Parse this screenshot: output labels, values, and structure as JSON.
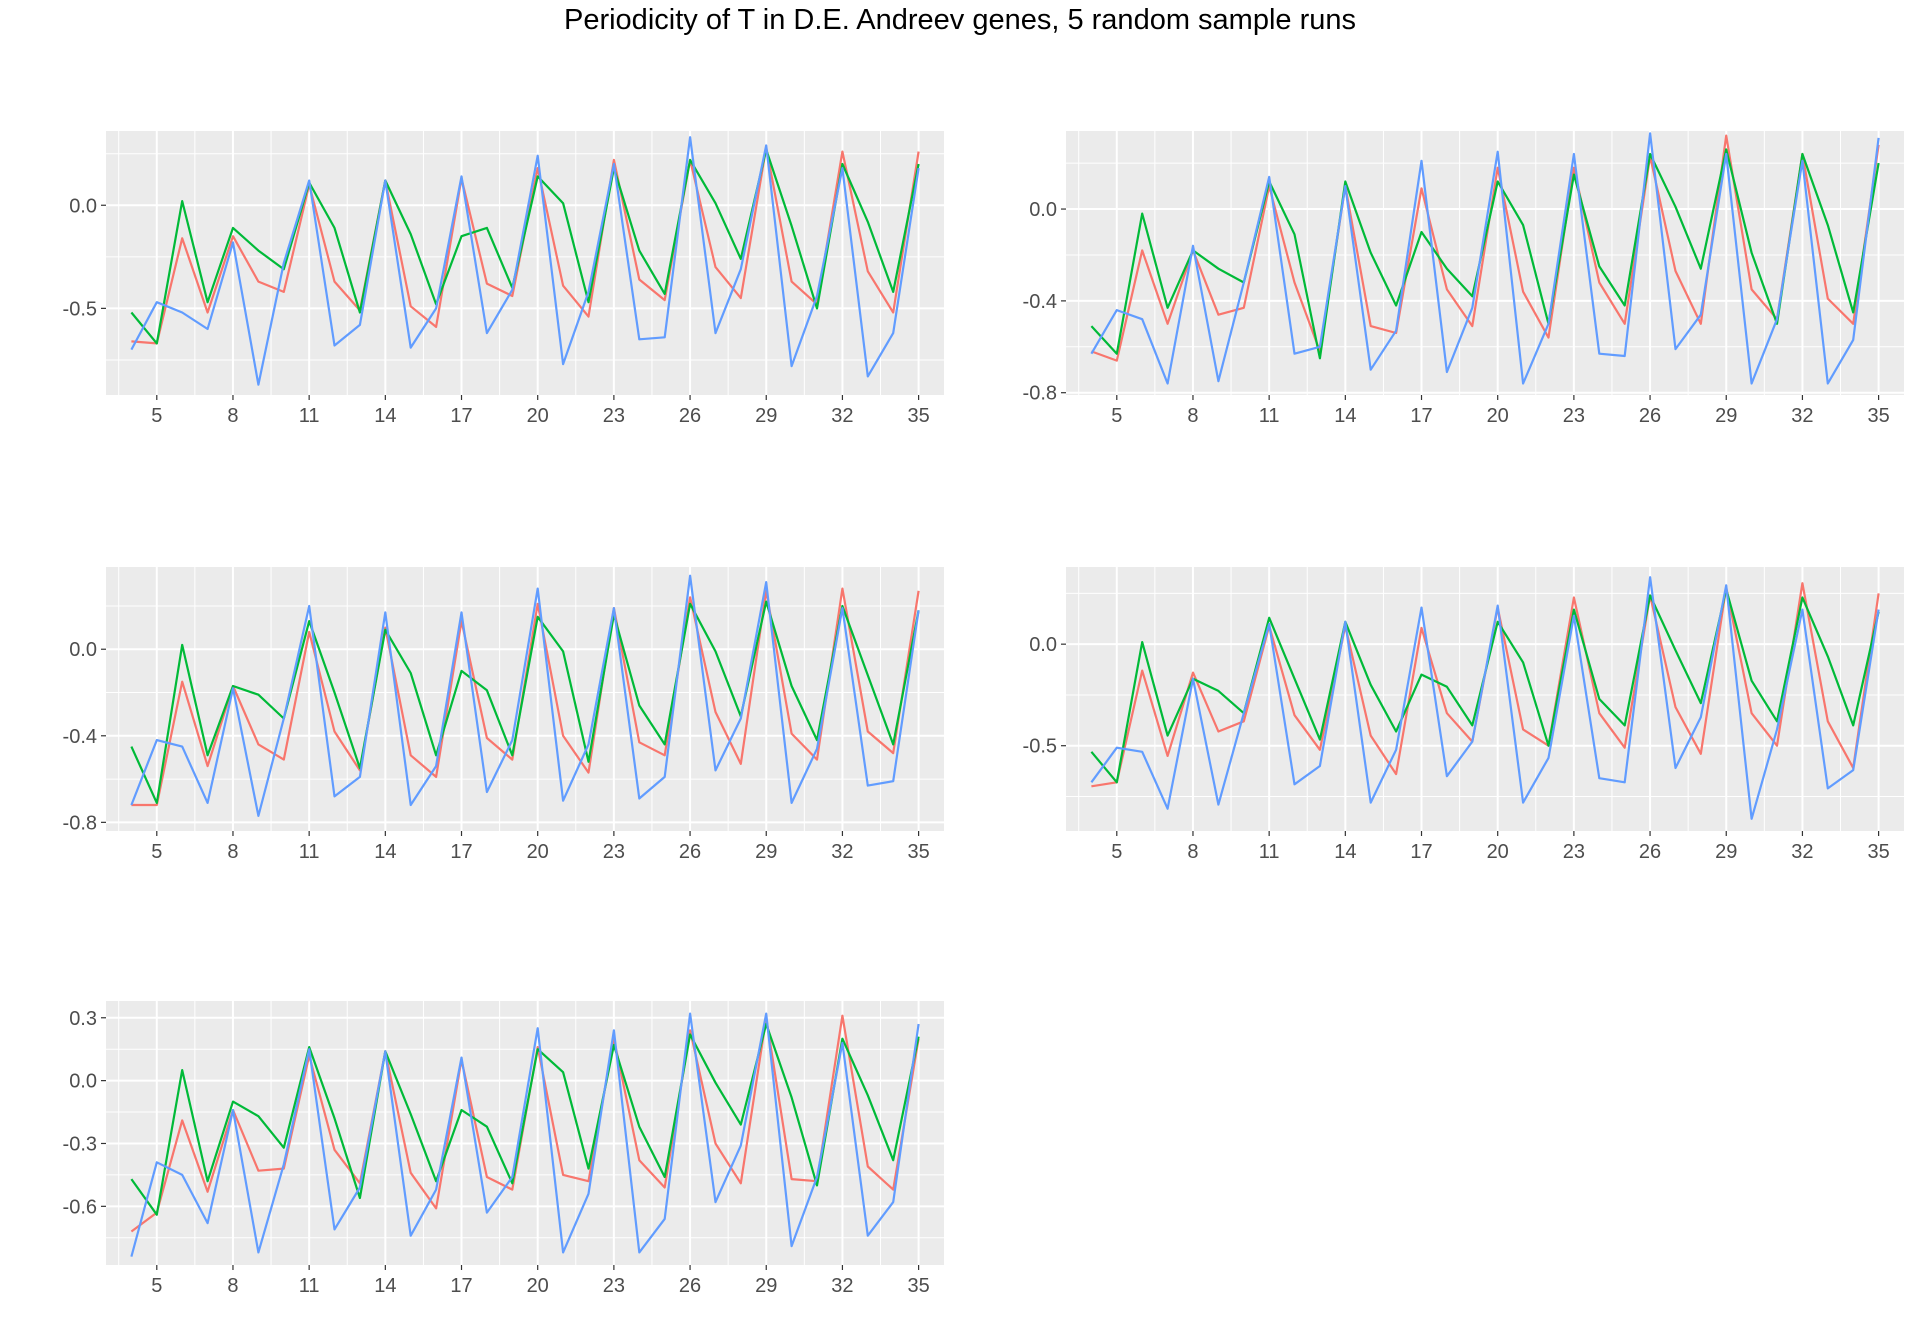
{
  "title": "Periodicity of T in D.E. Andreev genes, 5 random sample runs",
  "colors": {
    "series1": "#F8766D",
    "series2": "#00BA38",
    "series3": "#619CFF",
    "panel_bg": "#EBEBEB",
    "grid": "#FFFFFF",
    "tick_text": "#4D4D4D"
  },
  "chart_data": [
    {
      "type": "line",
      "xlim": [
        3,
        36
      ],
      "ylim": [
        -0.92,
        0.36
      ],
      "x_ticks": [
        5,
        8,
        11,
        14,
        17,
        20,
        23,
        26,
        29,
        32,
        35
      ],
      "x_tick_labels": [
        "5",
        "8",
        "11",
        "14",
        "17",
        "20",
        "23",
        "26",
        "29",
        "32",
        "35"
      ],
      "y_ticks": [
        -0.5,
        0.0
      ],
      "y_tick_labels": [
        "-0.5",
        "0.0"
      ],
      "x": [
        4,
        5,
        6,
        7,
        8,
        9,
        10,
        11,
        12,
        13,
        14,
        15,
        16,
        17,
        18,
        19,
        20,
        21,
        22,
        23,
        24,
        25,
        26,
        27,
        28,
        29,
        30,
        31,
        32,
        33,
        34,
        35
      ],
      "series": [
        {
          "color": "#F8766D",
          "values": [
            -0.66,
            -0.67,
            -0.16,
            -0.52,
            -0.15,
            -0.37,
            -0.42,
            0.1,
            -0.37,
            -0.51,
            0.12,
            -0.49,
            -0.59,
            0.13,
            -0.38,
            -0.44,
            0.18,
            -0.39,
            -0.54,
            0.22,
            -0.36,
            -0.46,
            0.22,
            -0.3,
            -0.45,
            0.28,
            -0.37,
            -0.48,
            0.26,
            -0.32,
            -0.52,
            0.26
          ]
        },
        {
          "color": "#00BA38",
          "values": [
            -0.52,
            -0.67,
            0.02,
            -0.47,
            -0.11,
            -0.22,
            -0.31,
            0.11,
            -0.11,
            -0.52,
            0.12,
            -0.14,
            -0.48,
            -0.15,
            -0.11,
            -0.4,
            0.14,
            0.01,
            -0.47,
            0.18,
            -0.22,
            -0.43,
            0.22,
            0.01,
            -0.26,
            0.27,
            -0.1,
            -0.5,
            0.2,
            -0.08,
            -0.42,
            0.2
          ]
        },
        {
          "color": "#619CFF",
          "values": [
            -0.7,
            -0.47,
            -0.52,
            -0.6,
            -0.18,
            -0.87,
            -0.28,
            0.12,
            -0.68,
            -0.58,
            0.12,
            -0.69,
            -0.5,
            0.14,
            -0.62,
            -0.41,
            0.24,
            -0.77,
            -0.42,
            0.2,
            -0.65,
            -0.64,
            0.33,
            -0.62,
            -0.31,
            0.29,
            -0.78,
            -0.44,
            0.18,
            -0.83,
            -0.62,
            0.18
          ]
        }
      ]
    },
    {
      "type": "line",
      "xlim": [
        3,
        36
      ],
      "ylim": [
        -0.81,
        0.34
      ],
      "x_ticks": [
        5,
        8,
        11,
        14,
        17,
        20,
        23,
        26,
        29,
        32,
        35
      ],
      "x_tick_labels": [
        "5",
        "8",
        "11",
        "14",
        "17",
        "20",
        "23",
        "26",
        "29",
        "32",
        "35"
      ],
      "y_ticks": [
        -0.8,
        -0.4,
        0.0
      ],
      "y_tick_labels": [
        "-0.8",
        "-0.4",
        "0.0"
      ],
      "x": [
        4,
        5,
        6,
        7,
        8,
        9,
        10,
        11,
        12,
        13,
        14,
        15,
        16,
        17,
        18,
        19,
        20,
        21,
        22,
        23,
        24,
        25,
        26,
        27,
        28,
        29,
        30,
        31,
        32,
        33,
        34,
        35
      ],
      "series": [
        {
          "color": "#F8766D",
          "values": [
            -0.62,
            -0.66,
            -0.18,
            -0.5,
            -0.18,
            -0.46,
            -0.43,
            0.1,
            -0.32,
            -0.62,
            0.1,
            -0.51,
            -0.54,
            0.09,
            -0.35,
            -0.51,
            0.18,
            -0.36,
            -0.56,
            0.18,
            -0.32,
            -0.5,
            0.23,
            -0.27,
            -0.5,
            0.32,
            -0.35,
            -0.48,
            0.24,
            -0.39,
            -0.5,
            0.28
          ]
        },
        {
          "color": "#00BA38",
          "values": [
            -0.51,
            -0.63,
            -0.02,
            -0.43,
            -0.18,
            -0.26,
            -0.32,
            0.12,
            -0.11,
            -0.65,
            0.12,
            -0.19,
            -0.42,
            -0.1,
            -0.26,
            -0.38,
            0.12,
            -0.07,
            -0.5,
            0.15,
            -0.25,
            -0.42,
            0.24,
            0.01,
            -0.26,
            0.26,
            -0.19,
            -0.5,
            0.24,
            -0.07,
            -0.45,
            0.2
          ]
        },
        {
          "color": "#619CFF",
          "values": [
            -0.63,
            -0.44,
            -0.48,
            -0.76,
            -0.16,
            -0.75,
            -0.32,
            0.14,
            -0.63,
            -0.6,
            0.1,
            -0.7,
            -0.53,
            0.21,
            -0.71,
            -0.43,
            0.25,
            -0.76,
            -0.5,
            0.24,
            -0.63,
            -0.64,
            0.33,
            -0.61,
            -0.46,
            0.24,
            -0.76,
            -0.48,
            0.21,
            -0.76,
            -0.57,
            0.31
          ]
        }
      ]
    },
    {
      "type": "line",
      "xlim": [
        3,
        36
      ],
      "ylim": [
        -0.84,
        0.38
      ],
      "x_ticks": [
        5,
        8,
        11,
        14,
        17,
        20,
        23,
        26,
        29,
        32,
        35
      ],
      "x_tick_labels": [
        "5",
        "8",
        "11",
        "14",
        "17",
        "20",
        "23",
        "26",
        "29",
        "32",
        "35"
      ],
      "y_ticks": [
        -0.8,
        -0.4,
        0.0
      ],
      "y_tick_labels": [
        "-0.8",
        "-0.4",
        "0.0"
      ],
      "x": [
        4,
        5,
        6,
        7,
        8,
        9,
        10,
        11,
        12,
        13,
        14,
        15,
        16,
        17,
        18,
        19,
        20,
        21,
        22,
        23,
        24,
        25,
        26,
        27,
        28,
        29,
        30,
        31,
        32,
        33,
        34,
        35
      ],
      "series": [
        {
          "color": "#F8766D",
          "values": [
            -0.72,
            -0.72,
            -0.15,
            -0.54,
            -0.17,
            -0.44,
            -0.51,
            0.08,
            -0.38,
            -0.56,
            0.1,
            -0.49,
            -0.59,
            0.13,
            -0.41,
            -0.51,
            0.21,
            -0.4,
            -0.57,
            0.19,
            -0.43,
            -0.49,
            0.24,
            -0.29,
            -0.53,
            0.27,
            -0.39,
            -0.51,
            0.28,
            -0.38,
            -0.48,
            0.27
          ]
        },
        {
          "color": "#00BA38",
          "values": [
            -0.45,
            -0.71,
            0.02,
            -0.49,
            -0.17,
            -0.21,
            -0.32,
            0.13,
            -0.2,
            -0.55,
            0.09,
            -0.11,
            -0.49,
            -0.1,
            -0.19,
            -0.49,
            0.15,
            -0.01,
            -0.52,
            0.16,
            -0.26,
            -0.44,
            0.21,
            -0.01,
            -0.31,
            0.22,
            -0.17,
            -0.42,
            0.2,
            -0.12,
            -0.44,
            0.18
          ]
        },
        {
          "color": "#619CFF",
          "values": [
            -0.72,
            -0.42,
            -0.45,
            -0.71,
            -0.18,
            -0.77,
            -0.32,
            0.2,
            -0.68,
            -0.59,
            0.17,
            -0.72,
            -0.54,
            0.17,
            -0.66,
            -0.42,
            0.28,
            -0.7,
            -0.44,
            0.19,
            -0.69,
            -0.59,
            0.34,
            -0.56,
            -0.32,
            0.31,
            -0.71,
            -0.46,
            0.19,
            -0.63,
            -0.61,
            0.18
          ]
        }
      ]
    },
    {
      "type": "line",
      "xlim": [
        3,
        36
      ],
      "ylim": [
        -0.92,
        0.38
      ],
      "x_ticks": [
        5,
        8,
        11,
        14,
        17,
        20,
        23,
        26,
        29,
        32,
        35
      ],
      "x_tick_labels": [
        "5",
        "8",
        "11",
        "14",
        "17",
        "20",
        "23",
        "26",
        "29",
        "32",
        "35"
      ],
      "y_ticks": [
        -0.5,
        0.0
      ],
      "y_tick_labels": [
        "-0.5",
        "0.0"
      ],
      "x": [
        4,
        5,
        6,
        7,
        8,
        9,
        10,
        11,
        12,
        13,
        14,
        15,
        16,
        17,
        18,
        19,
        20,
        21,
        22,
        23,
        24,
        25,
        26,
        27,
        28,
        29,
        30,
        31,
        32,
        33,
        34,
        35
      ],
      "series": [
        {
          "color": "#F8766D",
          "values": [
            -0.7,
            -0.68,
            -0.13,
            -0.55,
            -0.14,
            -0.43,
            -0.38,
            0.09,
            -0.35,
            -0.52,
            0.09,
            -0.45,
            -0.64,
            0.08,
            -0.34,
            -0.48,
            0.18,
            -0.42,
            -0.5,
            0.23,
            -0.34,
            -0.51,
            0.24,
            -0.31,
            -0.54,
            0.28,
            -0.34,
            -0.5,
            0.3,
            -0.38,
            -0.61,
            0.25
          ]
        },
        {
          "color": "#00BA38",
          "values": [
            -0.53,
            -0.68,
            0.01,
            -0.45,
            -0.17,
            -0.23,
            -0.34,
            0.13,
            -0.17,
            -0.47,
            0.11,
            -0.2,
            -0.43,
            -0.15,
            -0.21,
            -0.4,
            0.11,
            -0.09,
            -0.5,
            0.17,
            -0.27,
            -0.4,
            0.24,
            -0.03,
            -0.29,
            0.27,
            -0.18,
            -0.38,
            0.23,
            -0.06,
            -0.4,
            0.16
          ]
        },
        {
          "color": "#619CFF",
          "values": [
            -0.68,
            -0.51,
            -0.53,
            -0.81,
            -0.17,
            -0.79,
            -0.34,
            0.1,
            -0.69,
            -0.6,
            0.11,
            -0.78,
            -0.52,
            0.18,
            -0.65,
            -0.48,
            0.19,
            -0.78,
            -0.56,
            0.14,
            -0.66,
            -0.68,
            0.33,
            -0.61,
            -0.36,
            0.29,
            -0.86,
            -0.42,
            0.17,
            -0.71,
            -0.62,
            0.17
          ]
        }
      ]
    },
    {
      "type": "line",
      "xlim": [
        3,
        36
      ],
      "ylim": [
        -0.88,
        0.38
      ],
      "x_ticks": [
        5,
        8,
        11,
        14,
        17,
        20,
        23,
        26,
        29,
        32,
        35
      ],
      "x_tick_labels": [
        "5",
        "8",
        "11",
        "14",
        "17",
        "20",
        "23",
        "26",
        "29",
        "32",
        "35"
      ],
      "y_ticks": [
        -0.6,
        -0.3,
        0.0,
        0.3
      ],
      "y_tick_labels": [
        "-0.6",
        "-0.3",
        "0.0",
        "0.3"
      ],
      "x": [
        4,
        5,
        6,
        7,
        8,
        9,
        10,
        11,
        12,
        13,
        14,
        15,
        16,
        17,
        18,
        19,
        20,
        21,
        22,
        23,
        24,
        25,
        26,
        27,
        28,
        29,
        30,
        31,
        32,
        33,
        34,
        35
      ],
      "series": [
        {
          "color": "#F8766D",
          "values": [
            -0.72,
            -0.63,
            -0.19,
            -0.53,
            -0.14,
            -0.43,
            -0.42,
            0.12,
            -0.33,
            -0.49,
            0.14,
            -0.44,
            -0.61,
            0.1,
            -0.46,
            -0.52,
            0.16,
            -0.45,
            -0.48,
            0.2,
            -0.38,
            -0.51,
            0.24,
            -0.3,
            -0.49,
            0.3,
            -0.47,
            -0.48,
            0.31,
            -0.41,
            -0.52,
            0.2
          ]
        },
        {
          "color": "#00BA38",
          "values": [
            -0.47,
            -0.64,
            0.05,
            -0.48,
            -0.1,
            -0.17,
            -0.32,
            0.16,
            -0.18,
            -0.56,
            0.14,
            -0.16,
            -0.48,
            -0.14,
            -0.22,
            -0.49,
            0.15,
            0.04,
            -0.42,
            0.17,
            -0.22,
            -0.46,
            0.22,
            -0.01,
            -0.21,
            0.27,
            -0.08,
            -0.5,
            0.2,
            -0.07,
            -0.38,
            0.21
          ]
        },
        {
          "color": "#619CFF",
          "values": [
            -0.84,
            -0.39,
            -0.45,
            -0.68,
            -0.14,
            -0.82,
            -0.4,
            0.15,
            -0.71,
            -0.51,
            0.14,
            -0.74,
            -0.52,
            0.11,
            -0.63,
            -0.46,
            0.25,
            -0.82,
            -0.54,
            0.24,
            -0.82,
            -0.66,
            0.32,
            -0.58,
            -0.31,
            0.32,
            -0.79,
            -0.46,
            0.18,
            -0.74,
            -0.58,
            0.27
          ]
        }
      ]
    }
  ]
}
